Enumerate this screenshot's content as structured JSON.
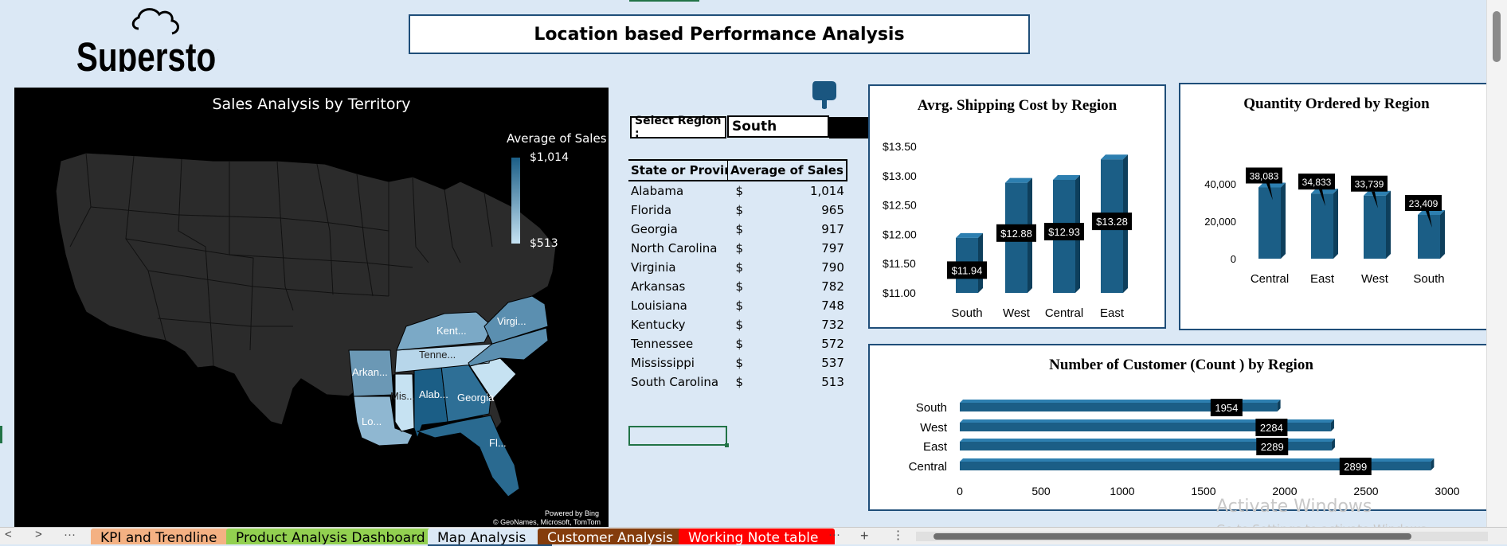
{
  "header": {
    "logo_text": "Superstore",
    "title": "Location based Performance Analysis"
  },
  "map": {
    "title": "Sales Analysis by Territory",
    "legend_title": "Average of Sales",
    "legend_max": "$1,014",
    "legend_min": "$513",
    "credit_line1": "Powered by Bing",
    "credit_line2": "© GeoNames, Microsoft, TomTom",
    "state_labels": [
      "Virgi...",
      "Kent...",
      "Tenne...",
      "Arkan...",
      "Mis...",
      "Alab...",
      "Georgia",
      "Lo...",
      "Fl..."
    ]
  },
  "selector": {
    "label": "Select Region :",
    "value": "South"
  },
  "state_table": {
    "headers": [
      "State or Province",
      "Average of Sales"
    ],
    "currency": "$",
    "rows": [
      {
        "state": "Alabama",
        "value": "1,014"
      },
      {
        "state": "Florida",
        "value": "965"
      },
      {
        "state": "Georgia",
        "value": "917"
      },
      {
        "state": "North Carolina",
        "value": "797"
      },
      {
        "state": "Virginia",
        "value": "790"
      },
      {
        "state": "Arkansas",
        "value": "782"
      },
      {
        "state": "Louisiana",
        "value": "748"
      },
      {
        "state": "Kentucky",
        "value": "732"
      },
      {
        "state": "Tennessee",
        "value": "572"
      },
      {
        "state": "Mississippi",
        "value": "537"
      },
      {
        "state": "South Carolina",
        "value": "513"
      }
    ]
  },
  "chart_data": [
    {
      "type": "bar",
      "title": "Avrg. Shipping Cost by Region",
      "categories": [
        "South",
        "West",
        "Central",
        "East"
      ],
      "values": [
        11.94,
        12.88,
        12.93,
        13.28
      ],
      "data_labels": [
        "$11.94",
        "$12.88",
        "$12.93",
        "$13.28"
      ],
      "y_ticks": [
        "$13.50",
        "$13.00",
        "$12.50",
        "$12.00",
        "$11.50",
        "$11.00"
      ],
      "ylim": [
        11.0,
        13.5
      ],
      "color": "#1b5e86"
    },
    {
      "type": "bar",
      "title": "Quantity Ordered by Region",
      "categories": [
        "Central",
        "East",
        "West",
        "South"
      ],
      "values": [
        38083,
        34833,
        33739,
        23409
      ],
      "data_labels": [
        "38,083",
        "34,833",
        "33,739",
        "23,409"
      ],
      "y_ticks": [
        "40,000",
        "20,000",
        "0"
      ],
      "ylim": [
        0,
        50000
      ],
      "color": "#1b5e86"
    },
    {
      "type": "bar",
      "orientation": "horizontal",
      "title": "Number of Customer (Count ) by Region",
      "categories": [
        "South",
        "West",
        "East",
        "Central"
      ],
      "values": [
        1954,
        2284,
        2289,
        2899
      ],
      "data_labels": [
        "1954",
        "2284",
        "2289",
        "2899"
      ],
      "x_ticks": [
        "0",
        "500",
        "1000",
        "1500",
        "2000",
        "2500",
        "3000"
      ],
      "xlim": [
        0,
        3000
      ],
      "color": "#1b5e86"
    }
  ],
  "watermark": {
    "line1": "Activate Windows",
    "line2": "Go to Settings to activate Windows."
  },
  "sheet_tabs": [
    {
      "label": "KPI and Trendline",
      "color": "#f4b183"
    },
    {
      "label": "Product Analysis Dashboard",
      "color": "#92d050"
    },
    {
      "label": "Map Analysis",
      "color": "#dbe8f5",
      "active": true
    },
    {
      "label": "Customer Analysis",
      "color": "#843c0c"
    },
    {
      "label": "Working Note table",
      "color": "#ff0000"
    }
  ],
  "nav": {
    "prev": "<",
    "next": ">",
    "more": "···",
    "add": "+",
    "menu": "⋮"
  }
}
